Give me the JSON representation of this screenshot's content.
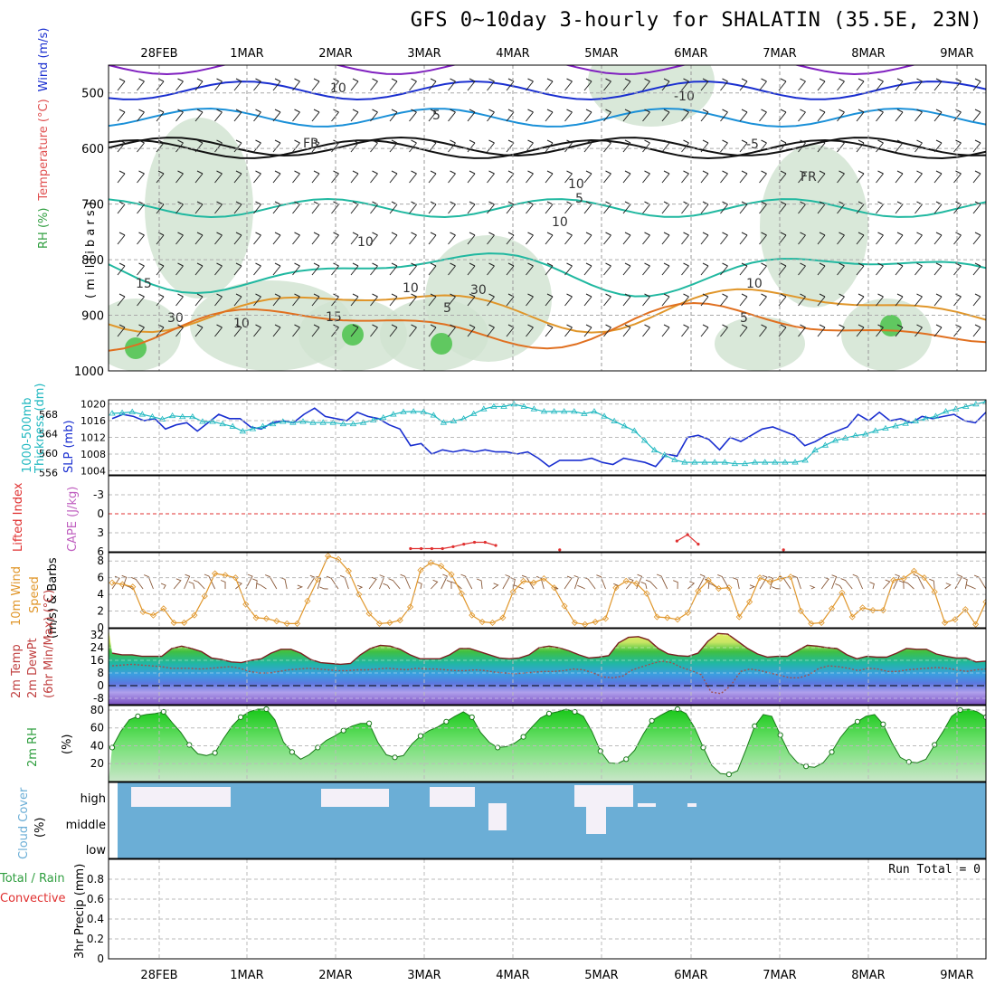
{
  "title": "GFS 0~10day 3-hourly for SHALATIN (35.5E, 23N)",
  "x_axis": {
    "labels": [
      "28FEB",
      "1MAR",
      "2MAR",
      "3MAR",
      "4MAR",
      "5MAR",
      "6MAR",
      "7MAR",
      "8MAR",
      "9MAR"
    ]
  },
  "colors": {
    "grid": "#bbbbbb",
    "rh_green": "#2f9e3f",
    "slp_blue": "#1a2fd0",
    "thickness_cyan": "#20b8c0",
    "lifted_red": "#e03030",
    "cape_purple": "#c060c0",
    "wind_orange": "#e0962a",
    "temp_red": "#c04040",
    "cloud_blue": "#6baed6"
  },
  "chart_data": [
    {
      "id": "upper",
      "type": "heatmap",
      "ylabel_parts": [
        "Wind (m/s)",
        "Temperature (°C)",
        "RH (%)"
      ],
      "yunit": "( m i l l i b a r s )",
      "yticks": [
        500,
        600,
        700,
        800,
        900,
        1000
      ],
      "ylim": [
        450,
        1000
      ],
      "contour_labels": [
        "10",
        "5",
        "FR",
        "10",
        "5",
        "10",
        "15",
        "15",
        "10",
        "5",
        "10",
        "-10",
        "-5",
        "FR",
        "30",
        "30",
        "10",
        "10",
        "5"
      ]
    },
    {
      "id": "slp",
      "type": "line",
      "ylabel_left": [
        "Thickness (dm)",
        "1000-500mb"
      ],
      "ylabel_right": "SLP (mb)",
      "left_ticks": [
        556,
        560,
        564,
        568
      ],
      "right_ticks": [
        1004,
        1008,
        1012,
        1016,
        1020
      ],
      "right_ylim": [
        1003,
        1021
      ],
      "left_ylim": [
        555.5,
        571
      ],
      "series": [
        {
          "key": "slp",
          "values": [
            1016.5,
            1017.5,
            1017,
            1016,
            1016.5,
            1014,
            1015,
            1015.5,
            1013.5,
            1015.5,
            1017.5,
            1016.5,
            1016.5,
            1014.5,
            1014,
            1015.5,
            1016,
            1015.5,
            1017.5,
            1019,
            1017,
            1016.5,
            1016,
            1018,
            1017,
            1016.5,
            1015,
            1014,
            1010,
            1010.5,
            1008,
            1009,
            1008.5,
            1009,
            1008.5,
            1009,
            1008.5,
            1008.5,
            1008,
            1008.5,
            1007,
            1005,
            1006.5,
            1006.5,
            1006.5,
            1007,
            1006,
            1005.5,
            1007,
            1006.5,
            1006,
            1005,
            1008,
            1007.5,
            1012,
            1012.5,
            1011.5,
            1009,
            1012,
            1011,
            1012.5,
            1014,
            1014.5,
            1013.5,
            1012.5,
            1010,
            1011,
            1012.5,
            1013.5,
            1014.5,
            1017.5,
            1016,
            1018,
            1016,
            1016.5,
            1015.5,
            1017,
            1016.5,
            1017,
            1017.5,
            1016,
            1015.5,
            1018
          ]
        },
        {
          "key": "thickness",
          "values": [
            568.2,
            568.3,
            568.5,
            568,
            567.5,
            567,
            567.7,
            567.5,
            567.5,
            566.5,
            566.5,
            566,
            565.5,
            564.5,
            565,
            565.5,
            566,
            566.5,
            566.3,
            566.5,
            566.3,
            566.3,
            566.3,
            566,
            566,
            566.3,
            566.8,
            567.3,
            568,
            568.5,
            568.6,
            568.5,
            567.8,
            566.3,
            566.6,
            567.1,
            568.1,
            569.1,
            569.6,
            569.6,
            570.1,
            569.6,
            569.1,
            568.6,
            568.6,
            568.6,
            568.6,
            568.1,
            568.6,
            567.6,
            566.6,
            565.6,
            564.6,
            562.6,
            560.6,
            559.6,
            558.6,
            558.1,
            558.1,
            558.1,
            558.1,
            558.1,
            557.8,
            557.8,
            558.1,
            558.1,
            558.1,
            558.1,
            558.1,
            558.5,
            560.6,
            561.6,
            562.6,
            563.1,
            563.6,
            563.9,
            564.6,
            565.1,
            565.6,
            566.1,
            566.6,
            567.1,
            567.6,
            568.6,
            569.1,
            569.6,
            570.1,
            570.6
          ]
        }
      ]
    },
    {
      "id": "li",
      "type": "line",
      "ylabel_red": "Lifted Index",
      "ylabel_purple": "CAPE (J/kg)",
      "yticks": [
        -3,
        0,
        3,
        6
      ],
      "ylim": [
        6,
        -6
      ],
      "values": [
        null,
        null,
        null,
        null,
        null,
        null,
        null,
        null,
        null,
        null,
        null,
        null,
        null,
        null,
        null,
        null,
        null,
        null,
        null,
        null,
        null,
        null,
        null,
        null,
        null,
        null,
        null,
        null,
        5.5,
        5.5,
        5.5,
        5.5,
        5.2,
        4.8,
        4.5,
        4.5,
        5.0,
        null,
        null,
        null,
        null,
        null,
        5.7,
        null,
        null,
        null,
        null,
        null,
        null,
        null,
        null,
        null,
        null,
        4.3,
        3.3,
        4.8,
        null,
        null,
        null,
        null,
        null,
        null,
        null,
        5.7,
        null,
        null,
        null,
        null,
        null,
        null,
        null,
        null,
        null,
        null,
        null,
        null,
        null,
        null,
        null,
        null,
        null,
        null,
        null
      ]
    },
    {
      "id": "wind",
      "type": "line",
      "ylabel_orange": "10m Wind",
      "ylabel_speed": "Speed",
      "ylabel_barbs": "(m/s) & Barbs",
      "yticks": [
        0,
        2,
        4,
        6,
        8
      ],
      "ylim": [
        0,
        9
      ],
      "values": [
        5.4,
        5.2,
        4.9,
        1.9,
        1.5,
        2.3,
        0.6,
        0.6,
        1.5,
        3.8,
        6.5,
        6.3,
        6.0,
        2.8,
        1.2,
        1.1,
        0.8,
        0.5,
        0.5,
        3.2,
        5.8,
        8.6,
        8.2,
        6.8,
        4.0,
        1.7,
        0.5,
        0.6,
        0.9,
        2.5,
        6.9,
        7.8,
        7.4,
        6.4,
        4.1,
        1.5,
        0.7,
        0.6,
        1.2,
        4.3,
        5.6,
        5.4,
        5.9,
        4.8,
        2.6,
        0.6,
        0.4,
        0.7,
        1.1,
        4.8,
        5.6,
        5.3,
        4.1,
        1.3,
        1.2,
        1.0,
        1.8,
        4.4,
        5.7,
        4.7,
        4.8,
        1.3,
        3.1,
        6.0,
        5.5,
        5.9,
        6.1,
        2.0,
        0.5,
        0.6,
        2.3,
        4.2,
        1.3,
        2.4,
        2.1,
        2.1,
        5.7,
        5.9,
        6.8,
        6.0,
        4.3,
        0.6,
        1.0,
        2.2,
        0.4,
        3.1
      ]
    },
    {
      "id": "temp",
      "type": "area",
      "ylabel_lines": [
        "2m Temp",
        "2m DewPt",
        "(6hr Min/Max) (°C)"
      ],
      "yticks": [
        -8,
        0,
        8,
        16,
        24,
        32
      ],
      "ylim": [
        -12,
        36
      ],
      "temp": [
        20.5,
        19.5,
        19.5,
        18.5,
        18.5,
        18.5,
        23.5,
        25,
        23.5,
        21.5,
        17.5,
        16.5,
        15,
        14.5,
        16,
        17,
        20.5,
        23,
        23,
        20.5,
        16.5,
        14.5,
        14,
        13.5,
        14,
        19.5,
        23.5,
        25.5,
        25,
        23,
        19.5,
        17,
        17,
        17,
        19.5,
        23.5,
        23.5,
        21.5,
        19.5,
        17.5,
        17,
        17.5,
        19.5,
        24,
        25,
        24,
        22,
        19.5,
        17.5,
        18,
        19,
        27,
        30.5,
        31,
        29,
        23.5,
        20,
        19,
        18.5,
        20.5,
        28,
        33,
        32.5,
        28,
        23.5,
        20,
        18,
        18.5,
        18.5,
        22,
        25.5,
        25,
        24,
        23.5,
        19.5,
        17,
        18.5,
        18,
        18,
        20.5,
        23.5,
        23,
        23,
        20,
        18.5,
        17.5,
        17.5,
        15,
        15.5
      ],
      "dewpoint": [
        12.5,
        13,
        13.5,
        13,
        12.5,
        12,
        11,
        11,
        11,
        10.5,
        11,
        11.5,
        12,
        11,
        9,
        8,
        8,
        9,
        10,
        10.5,
        11,
        10.5,
        10,
        9.5,
        9.5,
        10,
        10,
        10.5,
        11,
        10.5,
        10,
        11,
        10.5,
        10.5,
        10,
        9.5,
        9.5,
        10,
        9.5,
        8.5,
        8,
        7.5,
        8,
        8.5,
        9,
        9,
        9.5,
        10.5,
        10,
        8,
        5.5,
        5,
        6,
        10,
        12,
        14,
        15.5,
        14.5,
        11.5,
        9.5,
        7,
        -4,
        -5,
        0,
        9,
        10.5,
        9.5,
        8,
        6.5,
        5,
        5,
        7,
        11,
        12.5,
        12,
        11,
        9.5,
        11,
        10.5,
        9,
        9,
        10,
        10.5,
        11,
        11.5,
        11,
        10,
        9,
        10,
        10.5
      ]
    },
    {
      "id": "rh",
      "type": "area",
      "ylabel": "2m RH",
      "yunit": "(%)",
      "yticks": [
        20,
        40,
        60,
        80
      ],
      "ylim": [
        0,
        85
      ],
      "values": [
        38,
        56,
        69,
        73,
        75,
        76,
        78,
        66,
        55,
        41,
        31,
        29,
        32,
        48,
        62,
        72,
        78,
        81,
        81,
        69,
        44,
        33,
        25,
        30,
        38,
        46,
        51,
        57,
        62,
        65,
        65,
        44,
        30,
        27,
        29,
        42,
        51,
        57,
        61,
        67,
        73,
        78,
        72,
        55,
        44,
        38,
        39,
        43,
        50,
        61,
        71,
        76,
        78,
        81,
        78,
        73,
        56,
        34,
        21,
        20,
        25,
        35,
        53,
        68,
        74,
        79,
        81,
        76,
        60,
        38,
        18,
        9,
        8,
        12,
        36,
        62,
        75,
        73,
        52,
        32,
        21,
        17,
        16,
        21,
        33,
        49,
        61,
        67,
        73,
        75,
        64,
        44,
        27,
        22,
        21,
        25,
        41,
        56,
        73,
        80,
        81,
        78,
        72
      ]
    },
    {
      "id": "cloud",
      "type": "area",
      "ylabel": "Cloud Cover",
      "yunit": "(%)",
      "levels": [
        "high",
        "middle",
        "low"
      ]
    },
    {
      "id": "precip",
      "type": "bar",
      "ylabel_green": "Total / Rain",
      "ylabel_red": "Convective",
      "ylabel_black": "3hr Precip (mm)",
      "yticks": [
        0,
        0.2,
        0.4,
        0.6,
        0.8
      ],
      "ylim": [
        0,
        1
      ],
      "run_total": "Run Total = 0",
      "values": []
    }
  ]
}
